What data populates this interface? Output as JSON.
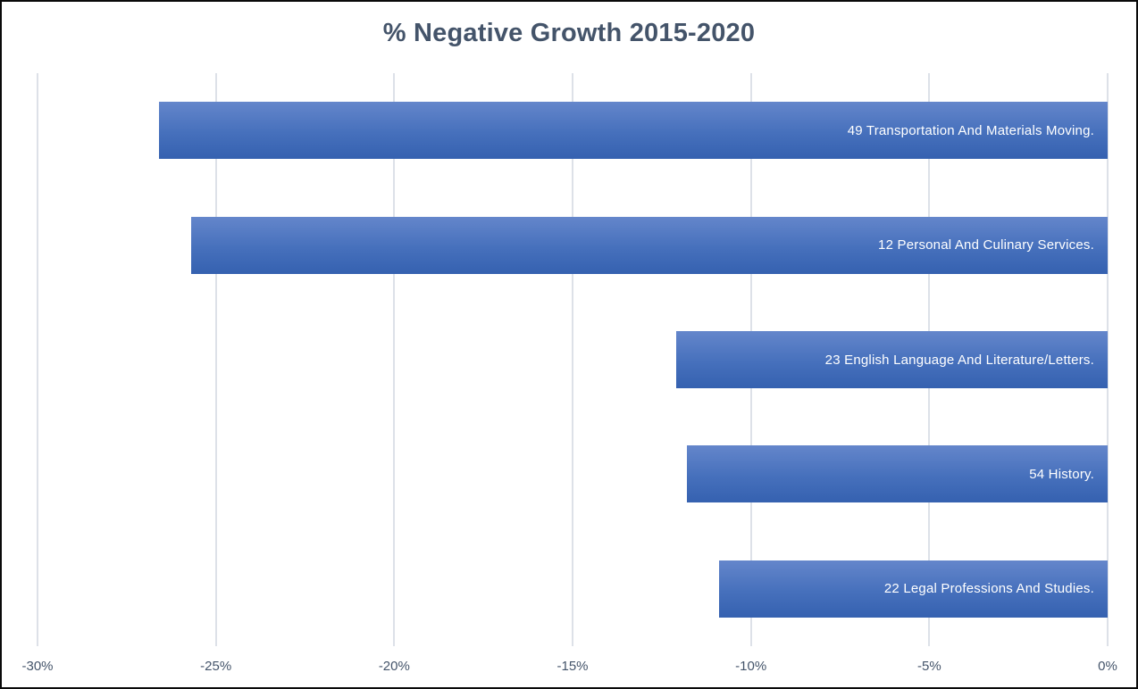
{
  "window": {
    "background": "#ffffff",
    "frame_border_color": "#0a0a0a"
  },
  "chart_data": {
    "type": "bar",
    "orientation": "horizontal",
    "title": "% Negative Growth 2015-2020",
    "xlabel": "",
    "ylabel": "",
    "categories": [
      "49 Transportation And Materials Moving.",
      "12 Personal And Culinary Services.",
      "23 English Language And Literature/Letters.",
      "54 History.",
      "22 Legal Professions And Studies."
    ],
    "values": [
      -26.6,
      -25.7,
      -12.1,
      -11.8,
      -10.9
    ],
    "value_unit": "%",
    "xlim": [
      -30,
      0
    ],
    "x_tick_labels": [
      "-30%",
      "-25%",
      "-20%",
      "-15%",
      "-10%",
      "-5%",
      "0%"
    ],
    "x_tick_values": [
      -30,
      -25,
      -20,
      -15,
      -10,
      -5,
      0
    ],
    "grid": true,
    "legend": false,
    "bars_anchored_at": 0,
    "labels_inside_bars": true,
    "colors": {
      "bar_gradient_top": "#6486cb",
      "bar_gradient_bottom": "#3561b0",
      "bar_label_text": "#ffffff",
      "title_text": "#44546A",
      "axis_tick_text": "#44546A",
      "gridline": "#dde1e8"
    }
  }
}
